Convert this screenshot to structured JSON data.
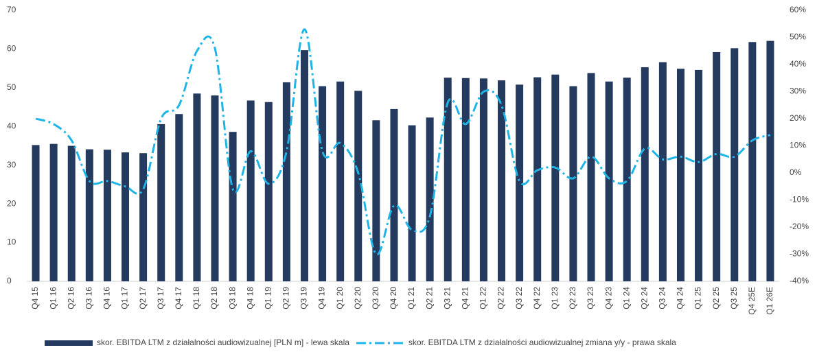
{
  "chart_data": {
    "type": "bar",
    "categories": [
      "Q4 15",
      "Q1 16",
      "Q2 16",
      "Q3 16",
      "Q4 16",
      "Q1 17",
      "Q2 17",
      "Q3 17",
      "Q4 17",
      "Q1 18",
      "Q2 18",
      "Q3 18",
      "Q4 18",
      "Q1 19",
      "Q2 19",
      "Q3 19",
      "Q4 19",
      "Q1 20",
      "Q2 20",
      "Q3 20",
      "Q4 20",
      "Q1 21",
      "Q2 21",
      "Q3 21",
      "Q4 21",
      "Q1 22",
      "Q2 22",
      "Q3 22",
      "Q4 22",
      "Q1 23",
      "Q2 23",
      "Q3 23",
      "Q4 23",
      "Q1 24",
      "Q2 24",
      "Q3 24",
      "Q4 24",
      "Q1 25",
      "Q2 25",
      "Q3 25",
      "Q4 25E",
      "Q1 26E"
    ],
    "series": [
      {
        "name": "skor. EBITDA LTM z działalności audiowizualnej [PLN m] - lewa skala",
        "type": "bar",
        "color": "#243a5e",
        "values": [
          35.2,
          35.5,
          35.0,
          34.1,
          34.0,
          33.3,
          33.1,
          40.6,
          43.2,
          48.5,
          48.0,
          38.6,
          46.7,
          46.3,
          51.4,
          59.7,
          50.4,
          51.6,
          49.2,
          41.6,
          44.5,
          40.3,
          42.3,
          52.6,
          52.5,
          52.4,
          51.9,
          50.8,
          52.7,
          53.4,
          50.4,
          53.8,
          51.6,
          52.6,
          55.3,
          56.6,
          54.9,
          54.6,
          59.2,
          60.2,
          61.8,
          62.1
        ]
      },
      {
        "name": "skor. EBITDA LTM z działalności audiowizualnej zmiana y/y - prawa skala",
        "type": "line",
        "axis": "y2",
        "color": "#1eb4e6",
        "values": [
          20,
          18,
          12,
          -3,
          -3,
          -5,
          -6,
          20,
          25,
          45,
          46,
          -6,
          8,
          -4,
          8,
          53,
          8,
          11,
          0,
          -30,
          -12,
          -21,
          -16,
          26,
          18,
          30,
          25,
          -3,
          1,
          2,
          -2,
          6,
          -2,
          -3,
          9,
          5,
          6,
          4,
          7,
          6,
          12,
          14
        ]
      }
    ],
    "ylim": [
      0,
      70
    ],
    "yticks": [
      0,
      10,
      20,
      30,
      40,
      50,
      60,
      70
    ],
    "y2lim": [
      -40,
      60
    ],
    "y2ticks": [
      {
        "value": -40,
        "label": "-40%"
      },
      {
        "value": -30,
        "label": "-30%"
      },
      {
        "value": -20,
        "label": "-20%"
      },
      {
        "value": -10,
        "label": "-10%"
      },
      {
        "value": 0,
        "label": "0%"
      },
      {
        "value": 10,
        "label": "10%"
      },
      {
        "value": 20,
        "label": "20%"
      },
      {
        "value": 30,
        "label": "30%"
      },
      {
        "value": 40,
        "label": "40%"
      },
      {
        "value": 50,
        "label": "50%"
      },
      {
        "value": 60,
        "label": "60%"
      }
    ]
  }
}
